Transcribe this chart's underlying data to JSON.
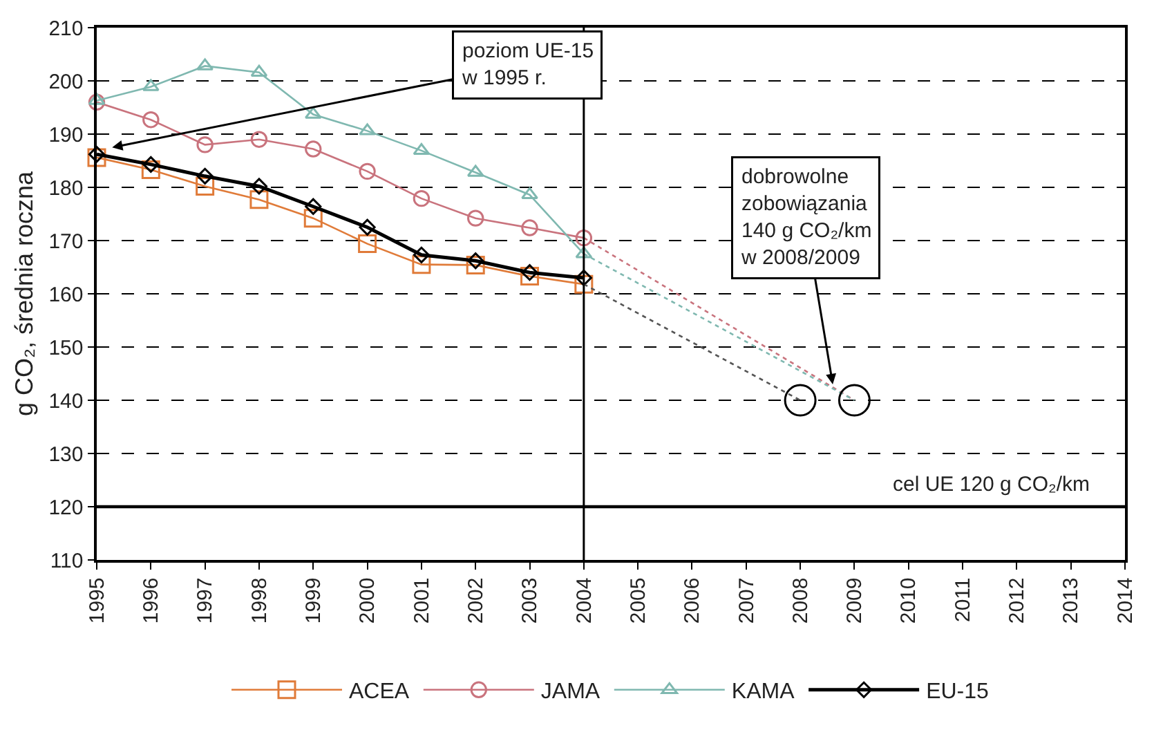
{
  "chart_data": {
    "type": "line",
    "ylabel": "g CO₂, średnia roczna",
    "x": [
      1995,
      1996,
      1997,
      1998,
      1999,
      2000,
      2001,
      2002,
      2003,
      2004
    ],
    "series": [
      {
        "name": "ACEA",
        "color": "#e07b39",
        "marker": "square",
        "values": [
          185.6,
          183.3,
          180.2,
          177.7,
          174.2,
          169.4,
          165.5,
          165.4,
          163.3,
          161.8
        ]
      },
      {
        "name": "JAMA",
        "color": "#c9737d",
        "marker": "circle",
        "values": [
          196,
          192.7,
          188,
          189,
          187.2,
          183,
          177.9,
          174.2,
          172.4,
          170.5
        ]
      },
      {
        "name": "KAMA",
        "color": "#7fb8b0",
        "marker": "triangle",
        "values": [
          196.3,
          198.9,
          202.8,
          201.6,
          193.7,
          190.6,
          186.9,
          182.8,
          178.6,
          167.5
        ]
      },
      {
        "name": "EU-15",
        "color": "#000000",
        "marker": "diamond",
        "values": [
          186.2,
          184.3,
          182.1,
          180.2,
          176.4,
          172.5,
          167.3,
          166.2,
          164,
          163
        ]
      },
      {
        "color": "#555555",
        "marker": "none",
        "line_style": "dotted",
        "x": [
          2004,
          2008
        ],
        "values": [
          161.8,
          140
        ]
      },
      {
        "color": "#c9737d",
        "marker": "none",
        "line_style": "dotted",
        "x": [
          2004,
          2009
        ],
        "values": [
          170.5,
          140
        ]
      },
      {
        "color": "#7fb8b0",
        "marker": "none",
        "line_style": "dotted",
        "x": [
          2004,
          2009
        ],
        "values": [
          167.5,
          140
        ]
      },
      {
        "type": "scatter",
        "color": "#000000",
        "marker": "circle",
        "x": [
          2008,
          2009
        ],
        "values": [
          140,
          140
        ]
      }
    ],
    "xlim": [
      1995,
      2014
    ],
    "xticks": [
      1995,
      1996,
      1997,
      1998,
      1999,
      2000,
      2001,
      2002,
      2003,
      2004,
      2005,
      2006,
      2007,
      2008,
      2009,
      2010,
      2011,
      2012,
      2013,
      2014
    ],
    "ylim": [
      110,
      210
    ],
    "yticks": [
      110,
      120,
      130,
      140,
      150,
      160,
      170,
      180,
      190,
      200,
      210
    ],
    "grid": "y",
    "legend": "bottom",
    "ref_lines": [
      {
        "axis": "x",
        "value": 2004,
        "color": "#000000",
        "line_style": "solid"
      },
      {
        "axis": "y",
        "value": 120,
        "color": "#000000",
        "line_style": "solid",
        "label": "cel UE 120 g CO₂/km"
      }
    ],
    "annotations": [
      "poziom UE-15\nw 1995 r.",
      {
        "text": "dobrowolne\nzobowiązania\n140 g CO₂/km\nw 2008/2009",
        "x": 2008.6,
        "y": 143
      }
    ]
  }
}
